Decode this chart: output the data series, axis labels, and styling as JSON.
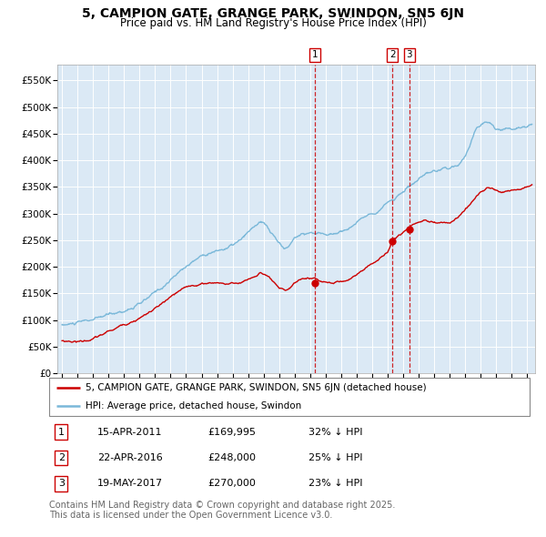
{
  "title_line1": "5, CAMPION GATE, GRANGE PARK, SWINDON, SN5 6JN",
  "title_line2": "Price paid vs. HM Land Registry's House Price Index (HPI)",
  "ylabel_ticks": [
    "£0",
    "£50K",
    "£100K",
    "£150K",
    "£200K",
    "£250K",
    "£300K",
    "£350K",
    "£400K",
    "£450K",
    "£500K",
    "£550K"
  ],
  "ytick_values": [
    0,
    50000,
    100000,
    150000,
    200000,
    250000,
    300000,
    350000,
    400000,
    450000,
    500000,
    550000
  ],
  "ylim": [
    0,
    580000
  ],
  "xlim_start": 1994.7,
  "xlim_end": 2025.5,
  "hpi_color": "#7ab8d9",
  "price_color": "#cc0000",
  "background_color": "#dbe9f5",
  "sale_dates": [
    2011.29,
    2016.31,
    2017.38
  ],
  "sale_prices": [
    169995,
    248000,
    270000
  ],
  "sale_labels": [
    "1",
    "2",
    "3"
  ],
  "vline_color": "#cc0000",
  "legend_label_red": "5, CAMPION GATE, GRANGE PARK, SWINDON, SN5 6JN (detached house)",
  "legend_label_blue": "HPI: Average price, detached house, Swindon",
  "table_data": [
    [
      "1",
      "15-APR-2011",
      "£169,995",
      "32% ↓ HPI"
    ],
    [
      "2",
      "22-APR-2016",
      "£248,000",
      "25% ↓ HPI"
    ],
    [
      "3",
      "19-MAY-2017",
      "£270,000",
      "23% ↓ HPI"
    ]
  ],
  "footer": "Contains HM Land Registry data © Crown copyright and database right 2025.\nThis data is licensed under the Open Government Licence v3.0.",
  "title_fontsize": 10,
  "subtitle_fontsize": 8.5,
  "tick_fontsize": 7.5,
  "legend_fontsize": 7.5,
  "table_fontsize": 8,
  "footer_fontsize": 7
}
